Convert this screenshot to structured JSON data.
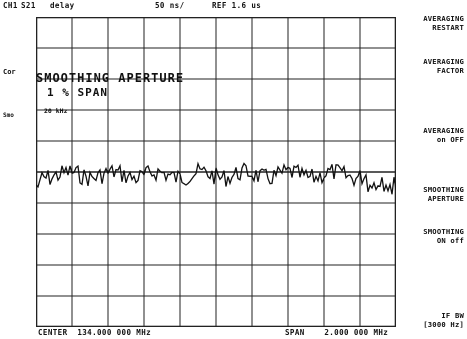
{
  "header": {
    "channel": "CH1",
    "param": "S21",
    "format": "delay",
    "scale": "50 ns/",
    "ref": "REF 1.6 us"
  },
  "annotations": {
    "cor": "Cor",
    "smo": "Smo"
  },
  "overlay": {
    "title": "SMOOTHING APERTURE",
    "value": "1 % SPAN",
    "sub": "20 kHz"
  },
  "softkeys": [
    {
      "line1": "AVERAGING",
      "line2": "RESTART"
    },
    {
      "line1": "AVERAGING",
      "line2": "FACTOR"
    },
    {
      "line1": "AVERAGING",
      "line2": "on OFF"
    },
    {
      "line1": "SMOOTHING",
      "line2": "APERTURE"
    },
    {
      "line1": "SMOOTHING",
      "line2": "ON off"
    },
    {
      "line1": "IF BW",
      "line2": "[3000 Hz]"
    }
  ],
  "footer": {
    "center": "CENTER  134.000 000 MHz",
    "span": "SPAN    2.000 000 MHz"
  },
  "colors": {
    "trace": "#111111",
    "grid": "#222222"
  }
}
